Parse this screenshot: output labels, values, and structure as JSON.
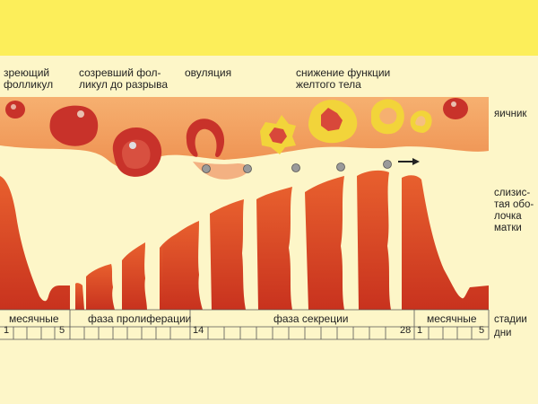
{
  "labels": {
    "ripening_follicle": "зреющий\nфолликул",
    "mature_follicle": "созревший фол-\nликул до разрыва",
    "ovulation": "овуляция",
    "corpus_luteum": "снижение функции\nжелтого тела",
    "ovary": "яичник",
    "mucosa": "слизис-\nтая обо-\nлочка\nматки",
    "stages": "стадии",
    "days": "дни"
  },
  "phases": {
    "menses_1": "месячные",
    "proliferation": "фаза пролиферации",
    "secretion": "фаза секреции",
    "menses_2": "месячные"
  },
  "days": {
    "d1": "1",
    "d5": "5",
    "d14": "14",
    "d28": "28",
    "d1b": "1",
    "d5b": "5"
  },
  "colors": {
    "header_yellow": "#fcee5a",
    "background": "#fdf6c8",
    "ovary_orange": "#f0a064",
    "mucosa_red": "#d8402a",
    "follicle_red": "#c8322a",
    "corpus_yellow": "#f2d43a"
  }
}
